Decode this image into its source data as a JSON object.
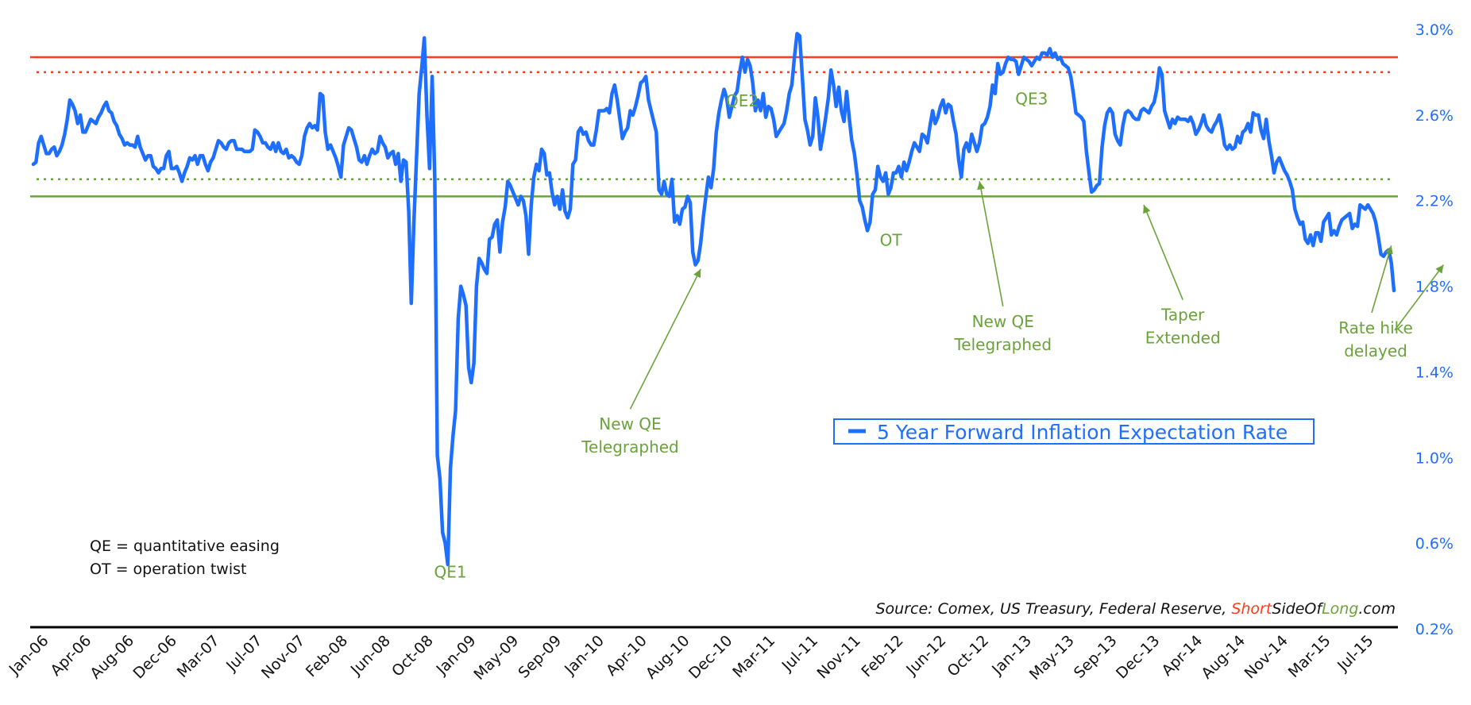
{
  "chart_data": {
    "type": "line",
    "series": [
      {
        "name": "5 Year Forward Inflation Expectation Rate",
        "color": "#1f6fff",
        "values": [
          2.37,
          2.38,
          2.47,
          2.5,
          2.46,
          2.42,
          2.42,
          2.44,
          2.45,
          2.41,
          2.43,
          2.46,
          2.51,
          2.58,
          2.67,
          2.65,
          2.62,
          2.56,
          2.6,
          2.52,
          2.52,
          2.55,
          2.58,
          2.57,
          2.56,
          2.59,
          2.61,
          2.64,
          2.66,
          2.62,
          2.61,
          2.57,
          2.55,
          2.51,
          2.49,
          2.46,
          2.47,
          2.46,
          2.46,
          2.45,
          2.5,
          2.45,
          2.42,
          2.39,
          2.41,
          2.41,
          2.36,
          2.35,
          2.33,
          2.35,
          2.35,
          2.41,
          2.43,
          2.35,
          2.35,
          2.36,
          2.33,
          2.29,
          2.33,
          2.36,
          2.4,
          2.39,
          2.41,
          2.37,
          2.41,
          2.41,
          2.37,
          2.34,
          2.38,
          2.4,
          2.44,
          2.48,
          2.47,
          2.45,
          2.44,
          2.47,
          2.48,
          2.48,
          2.44,
          2.44,
          2.44,
          2.43,
          2.43,
          2.43,
          2.44,
          2.53,
          2.52,
          2.5,
          2.47,
          2.47,
          2.45,
          2.44,
          2.47,
          2.43,
          2.47,
          2.43,
          2.42,
          2.44,
          2.4,
          2.41,
          2.4,
          2.38,
          2.37,
          2.41,
          2.5,
          2.54,
          2.56,
          2.54,
          2.55,
          2.53,
          2.7,
          2.69,
          2.52,
          2.44,
          2.46,
          2.43,
          2.4,
          2.36,
          2.31,
          2.46,
          2.5,
          2.54,
          2.53,
          2.49,
          2.45,
          2.39,
          2.38,
          2.41,
          2.37,
          2.41,
          2.44,
          2.42,
          2.43,
          2.5,
          2.47,
          2.45,
          2.4,
          2.42,
          2.43,
          2.37,
          2.42,
          2.29,
          2.39,
          2.38,
          2.15,
          1.72,
          2.1,
          2.4,
          2.7,
          2.82,
          2.96,
          2.6,
          2.35,
          2.78,
          2.3,
          1.01,
          0.9,
          0.65,
          0.6,
          0.5,
          0.95,
          1.1,
          1.22,
          1.65,
          1.8,
          1.76,
          1.71,
          1.42,
          1.35,
          1.44,
          1.8,
          1.93,
          1.91,
          1.88,
          1.86,
          2.02,
          2.03,
          2.09,
          2.11,
          1.96,
          2.1,
          2.17,
          2.29,
          2.27,
          2.24,
          2.21,
          2.18,
          2.22,
          2.2,
          2.13,
          1.95,
          2.18,
          2.31,
          2.37,
          2.34,
          2.44,
          2.42,
          2.32,
          2.33,
          2.24,
          2.18,
          2.22,
          2.16,
          2.25,
          2.15,
          2.12,
          2.16,
          2.37,
          2.39,
          2.52,
          2.54,
          2.51,
          2.52,
          2.48,
          2.46,
          2.46,
          2.53,
          2.62,
          2.62,
          2.62,
          2.63,
          2.61,
          2.7,
          2.74,
          2.67,
          2.58,
          2.49,
          2.52,
          2.54,
          2.62,
          2.6,
          2.64,
          2.69,
          2.75,
          2.76,
          2.78,
          2.67,
          2.62,
          2.57,
          2.52,
          2.25,
          2.23,
          2.29,
          2.23,
          2.22,
          2.3,
          2.1,
          2.13,
          2.09,
          2.16,
          2.17,
          2.22,
          2.19,
          1.96,
          1.9,
          1.92,
          2.0,
          2.12,
          2.22,
          2.31,
          2.26,
          2.35,
          2.52,
          2.61,
          2.67,
          2.72,
          2.68,
          2.59,
          2.64,
          2.69,
          2.71,
          2.8,
          2.87,
          2.8,
          2.86,
          2.83,
          2.75,
          2.62,
          2.67,
          2.62,
          2.7,
          2.59,
          2.64,
          2.63,
          2.58,
          2.5,
          2.52,
          2.54,
          2.56,
          2.62,
          2.7,
          2.74,
          2.87,
          2.98,
          2.97,
          2.78,
          2.58,
          2.53,
          2.46,
          2.5,
          2.68,
          2.59,
          2.44,
          2.51,
          2.59,
          2.68,
          2.81,
          2.74,
          2.64,
          2.73,
          2.62,
          2.57,
          2.71,
          2.59,
          2.48,
          2.42,
          2.32,
          2.2,
          2.17,
          2.11,
          2.06,
          2.1,
          2.23,
          2.25,
          2.36,
          2.31,
          2.29,
          2.33,
          2.23,
          2.26,
          2.33,
          2.33,
          2.36,
          2.31,
          2.38,
          2.34,
          2.38,
          2.43,
          2.47,
          2.45,
          2.43,
          2.51,
          2.5,
          2.47,
          2.55,
          2.62,
          2.56,
          2.59,
          2.64,
          2.67,
          2.61,
          2.65,
          2.64,
          2.57,
          2.51,
          2.39,
          2.31,
          2.44,
          2.47,
          2.43,
          2.51,
          2.47,
          2.43,
          2.47,
          2.55,
          2.56,
          2.59,
          2.64,
          2.74,
          2.7,
          2.84,
          2.79,
          2.8,
          2.84,
          2.87,
          2.86,
          2.86,
          2.85,
          2.79,
          2.83,
          2.87,
          2.86,
          2.85,
          2.83,
          2.85,
          2.87,
          2.86,
          2.89,
          2.89,
          2.88,
          2.91,
          2.87,
          2.89,
          2.86,
          2.87,
          2.84,
          2.83,
          2.82,
          2.78,
          2.7,
          2.61,
          2.6,
          2.59,
          2.57,
          2.43,
          2.33,
          2.24,
          2.25,
          2.27,
          2.28,
          2.45,
          2.55,
          2.61,
          2.63,
          2.61,
          2.51,
          2.48,
          2.46,
          2.55,
          2.61,
          2.62,
          2.61,
          2.59,
          2.58,
          2.58,
          2.62,
          2.63,
          2.62,
          2.61,
          2.64,
          2.66,
          2.72,
          2.82,
          2.79,
          2.62,
          2.58,
          2.54,
          2.58,
          2.56,
          2.59,
          2.58,
          2.58,
          2.58,
          2.57,
          2.59,
          2.56,
          2.51,
          2.53,
          2.56,
          2.6,
          2.55,
          2.53,
          2.52,
          2.55,
          2.57,
          2.6,
          2.54,
          2.46,
          2.44,
          2.46,
          2.44,
          2.45,
          2.5,
          2.47,
          2.52,
          2.53,
          2.56,
          2.52,
          2.61,
          2.6,
          2.6,
          2.53,
          2.49,
          2.58,
          2.48,
          2.41,
          2.33,
          2.38,
          2.4,
          2.37,
          2.34,
          2.32,
          2.29,
          2.25,
          2.16,
          2.12,
          2.09,
          2.1,
          2.02,
          2.0,
          2.04,
          1.99,
          2.05,
          2.05,
          2.01,
          2.1,
          2.12,
          2.14,
          2.04,
          2.06,
          2.04,
          2.08,
          2.11,
          2.12,
          2.13,
          2.14,
          2.07,
          2.09,
          2.08,
          2.18,
          2.17,
          2.16,
          2.18,
          2.16,
          2.14,
          2.1,
          2.03,
          1.95,
          1.94,
          1.96,
          1.97,
          1.91,
          1.78
        ]
      }
    ],
    "x_tick_labels": [
      "Jan-06",
      "Apr-06",
      "Aug-06",
      "Dec-06",
      "Mar-07",
      "Jul-07",
      "Nov-07",
      "Feb-08",
      "Jun-08",
      "Oct-08",
      "Jan-09",
      "May-09",
      "Sep-09",
      "Jan-10",
      "Apr-10",
      "Aug-10",
      "Dec-10",
      "Mar-11",
      "Jul-11",
      "Nov-11",
      "Feb-12",
      "Jun-12",
      "Oct-12",
      "Jan-13",
      "May-13",
      "Sep-13",
      "Dec-13",
      "Apr-14",
      "Aug-14",
      "Nov-14",
      "Mar-15",
      "Jul-15"
    ],
    "y_tick_labels": [
      "3.0%",
      "2.6%",
      "2.2%",
      "1.8%",
      "1.4%",
      "1.0%",
      "0.6%",
      "0.2%"
    ],
    "ylim": [
      0.2,
      3.0
    ],
    "reference_lines": [
      {
        "value": 2.87,
        "color": "#ff3b1f",
        "style": "solid"
      },
      {
        "value": 2.8,
        "color": "#ff3b1f",
        "style": "dotted"
      },
      {
        "value": 2.3,
        "color": "#6aa33a",
        "style": "dotted"
      },
      {
        "value": 2.22,
        "color": "#6aa33a",
        "style": "solid"
      }
    ],
    "annotations": [
      {
        "lines": [
          "QE1"
        ],
        "x_index": 160,
        "value": 0.44,
        "arrow": false
      },
      {
        "lines": [
          "QE2"
        ],
        "x_index": 272,
        "value": 2.64,
        "arrow": false
      },
      {
        "lines": [
          "OT"
        ],
        "x_index": 329,
        "value": 1.99,
        "arrow": false
      },
      {
        "lines": [
          "QE3"
        ],
        "x_index": 383,
        "value": 2.65,
        "arrow": false
      },
      {
        "lines": [
          "New QE",
          "Telegraphed"
        ],
        "x_index": 229,
        "value": 1.13,
        "arrow": true,
        "arrow_to_index": 256,
        "arrow_to_value": 1.88
      },
      {
        "lines": [
          "New QE",
          "Telegraphed"
        ],
        "x_index": 372,
        "value": 1.61,
        "arrow": true,
        "arrow_to_index": 363,
        "arrow_to_value": 2.29
      },
      {
        "lines": [
          "Taper",
          "Extended"
        ],
        "x_index": 441,
        "value": 1.64,
        "arrow": true,
        "arrow_to_index": 426,
        "arrow_to_value": 2.18
      },
      {
        "lines": [
          "Rate hike",
          "delayed"
        ],
        "x_index": 515,
        "value": 1.58,
        "arrow": true,
        "arrow_to_index": 521,
        "arrow_to_value": 1.99,
        "arrow2_to_index": 541,
        "arrow2_to_value": 1.9
      }
    ],
    "legend": {
      "label": "5 Year Forward Inflation Expectation Rate",
      "position": "center-right"
    },
    "notes": [
      "QE = quantitative easing",
      "OT = operation twist"
    ],
    "source": {
      "prefix": "Source: Comex, US Treasury, Federal Reserve, ",
      "brand_short": "Short",
      "brand_side_of": "SideOf",
      "brand_long": "Long",
      "brand_suffix": ".com",
      "brand_colors": {
        "short": "#ff3b1f",
        "side_of": "#111111",
        "long": "#6aa33a"
      }
    },
    "grid": false
  }
}
